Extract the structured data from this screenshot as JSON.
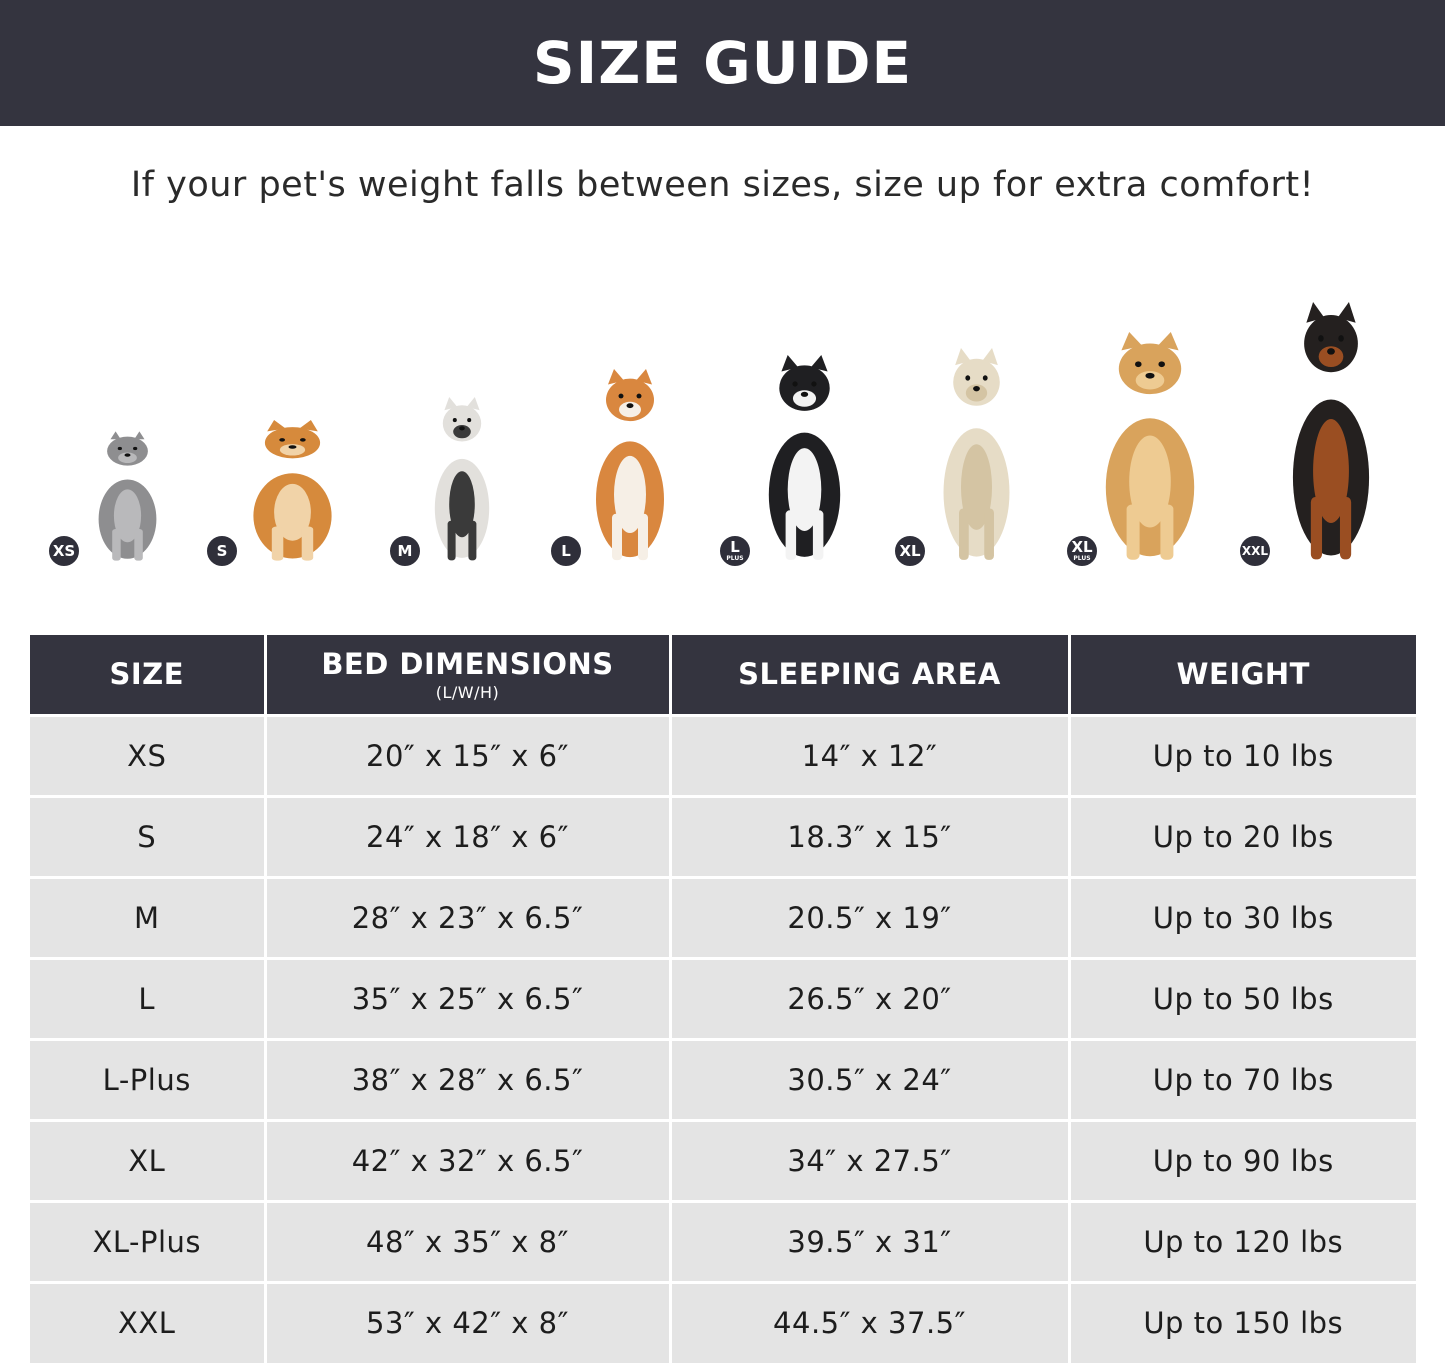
{
  "title": "SIZE GUIDE",
  "subtitle": "If your pet's weight falls between sizes, size up for extra comfort!",
  "colors": {
    "banner": "#34343f",
    "row": "#e4e4e4",
    "badge": "#2f2f3a"
  },
  "pets": [
    {
      "badge": "XS",
      "plus": "",
      "animal": "cat",
      "body": "#8e8e90",
      "accent": "#b9b9bb"
    },
    {
      "badge": "S",
      "plus": "",
      "animal": "pomeranian",
      "body": "#d68a3c",
      "accent": "#f1d3a8"
    },
    {
      "badge": "M",
      "plus": "",
      "animal": "french-bulldog",
      "body": "#e2e0dc",
      "accent": "#3a3a3a"
    },
    {
      "badge": "L",
      "plus": "",
      "animal": "shiba-inu",
      "body": "#d9873f",
      "accent": "#f6efe6"
    },
    {
      "badge": "L",
      "plus": "PLUS",
      "animal": "border-collie",
      "body": "#1f1f22",
      "accent": "#f3f3f3"
    },
    {
      "badge": "XL",
      "plus": "",
      "animal": "labrador",
      "body": "#e6dcc6",
      "accent": "#d4c4a3"
    },
    {
      "badge": "XL",
      "plus": "PLUS",
      "animal": "golden-retriever",
      "body": "#d9a35c",
      "accent": "#eecb92"
    },
    {
      "badge": "XXL",
      "plus": "",
      "animal": "doberman",
      "body": "#24201f",
      "accent": "#9a4e22"
    }
  ],
  "table": {
    "headers": {
      "size": "SIZE",
      "bed": "BED DIMENSIONS",
      "bed_sub": "(L/W/H)",
      "sleep": "SLEEPING AREA",
      "weight": "WEIGHT"
    },
    "rows": [
      [
        "XS",
        "20″ x 15″ x 6″",
        "14″ x 12″",
        "Up to 10 lbs"
      ],
      [
        "S",
        "24″ x 18″ x 6″",
        "18.3″ x 15″",
        "Up to 20 lbs"
      ],
      [
        "M",
        "28″ x 23″ x 6.5″",
        "20.5″ x 19″",
        "Up to 30 lbs"
      ],
      [
        "L",
        "35″ x 25″ x 6.5″",
        "26.5″ x 20″",
        "Up to 50 lbs"
      ],
      [
        "L-Plus",
        "38″ x 28″ x 6.5″",
        "30.5″ x 24″",
        "Up to 70 lbs"
      ],
      [
        "XL",
        "42″ x 32″ x 6.5″",
        "34″ x 27.5″",
        "Up to 90 lbs"
      ],
      [
        "XL-Plus",
        "48″ x 35″ x 8″",
        "39.5″ x 31″",
        "Up to 120 lbs"
      ],
      [
        "XXL",
        "53″ x 42″ x 8″",
        "44.5″ x 37.5″",
        "Up to 150 lbs"
      ]
    ]
  }
}
